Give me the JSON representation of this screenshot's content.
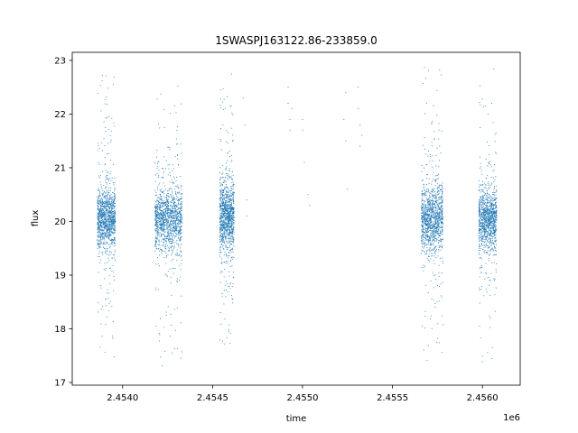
{
  "chart_data": {
    "type": "scatter",
    "title": "1SWASPJ163122.86-233859.0",
    "xlabel": "time",
    "ylabel": "flux",
    "x_offset_label": "1e6",
    "xlim": [
      2.45372,
      2.45621
    ],
    "ylim": [
      16.95,
      23.15
    ],
    "x_ticks": [
      2.454,
      2.4545,
      2.455,
      2.4555,
      2.456
    ],
    "x_tick_labels": [
      "2.4540",
      "2.4545",
      "2.4550",
      "2.4555",
      "2.4560"
    ],
    "y_ticks": [
      17,
      18,
      19,
      20,
      21,
      22,
      23
    ],
    "y_tick_labels": [
      "17",
      "18",
      "19",
      "20",
      "21",
      "22",
      "23"
    ],
    "grid": false,
    "marker_color": "#1f77b4",
    "clusters": [
      {
        "x_start": 2.45386,
        "x_end": 2.45396,
        "center": 20.05,
        "spread": 0.28,
        "count": 1200,
        "y_min": 17.3,
        "y_max": 22.9
      },
      {
        "x_start": 2.45418,
        "x_end": 2.45433,
        "center": 20.05,
        "spread": 0.28,
        "count": 1300,
        "y_min": 17.3,
        "y_max": 22.6
      },
      {
        "x_start": 2.45454,
        "x_end": 2.45462,
        "center": 20.1,
        "spread": 0.32,
        "count": 1100,
        "y_min": 17.5,
        "y_max": 22.8
      },
      {
        "x_start": 2.45566,
        "x_end": 2.45578,
        "center": 20.05,
        "spread": 0.3,
        "count": 1200,
        "y_min": 17.4,
        "y_max": 22.9
      },
      {
        "x_start": 2.45598,
        "x_end": 2.45608,
        "center": 20.05,
        "spread": 0.28,
        "count": 1100,
        "y_min": 17.2,
        "y_max": 22.9
      }
    ],
    "sparse_points": [
      [
        2.45467,
        22.3
      ],
      [
        2.45468,
        21.8
      ],
      [
        2.45469,
        20.4
      ],
      [
        2.45469,
        20.1
      ],
      [
        2.45492,
        22.5
      ],
      [
        2.45492,
        22.2
      ],
      [
        2.45493,
        21.9
      ],
      [
        2.45493,
        21.7
      ],
      [
        2.45494,
        22.1
      ],
      [
        2.455,
        21.9
      ],
      [
        2.455,
        21.7
      ],
      [
        2.45501,
        21.1
      ],
      [
        2.45503,
        20.5
      ],
      [
        2.45504,
        20.3
      ],
      [
        2.45523,
        21.9
      ],
      [
        2.45524,
        21.5
      ],
      [
        2.45524,
        22.4
      ],
      [
        2.45525,
        20.6
      ],
      [
        2.45531,
        22.5
      ],
      [
        2.45531,
        22.1
      ],
      [
        2.45532,
        21.8
      ],
      [
        2.45532,
        21.4
      ],
      [
        2.45533,
        21.6
      ]
    ]
  }
}
